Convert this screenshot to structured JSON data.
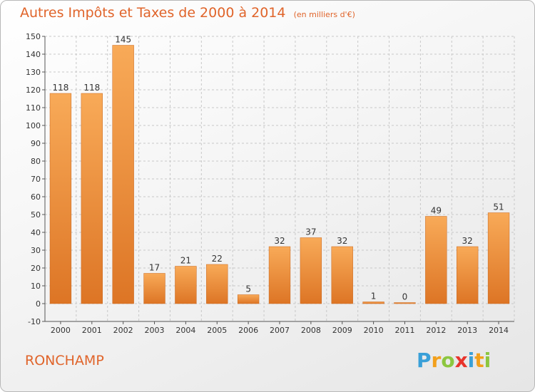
{
  "header": {
    "title": "Autres Impôts et Taxes de 2000 à 2014",
    "unit": "(en milliers d'€)"
  },
  "footer": {
    "place": "RONCHAMP",
    "logo_letters": [
      "P",
      "r",
      "o",
      "x",
      "i",
      "t",
      "i"
    ],
    "logo_colors": [
      "#3aa0d8",
      "#f2a01c",
      "#8cc63f",
      "#e8342c",
      "#3aa0d8",
      "#f2a01c",
      "#8cc63f"
    ]
  },
  "colors": {
    "bar_light": "#f8aa58",
    "bar_dark": "#dd7525",
    "grid": "#c8c8c8",
    "title": "#e0642a"
  },
  "chart_data": {
    "type": "bar",
    "title": "Autres Impôts et Taxes de 2000 à 2014",
    "subtitle": "(en milliers d'€)",
    "xlabel": "",
    "ylabel": "",
    "categories": [
      "2000",
      "2001",
      "2002",
      "2003",
      "2004",
      "2005",
      "2006",
      "2007",
      "2008",
      "2009",
      "2010",
      "2011",
      "2012",
      "2013",
      "2014"
    ],
    "values": [
      118,
      118,
      145,
      17,
      21,
      22,
      5,
      32,
      37,
      32,
      1,
      0,
      49,
      32,
      51
    ],
    "ylim": [
      -10,
      150
    ],
    "yticks": [
      -10,
      0,
      10,
      20,
      30,
      40,
      50,
      60,
      70,
      80,
      90,
      100,
      110,
      120,
      130,
      140,
      150
    ],
    "grid": true,
    "legend": "none"
  }
}
